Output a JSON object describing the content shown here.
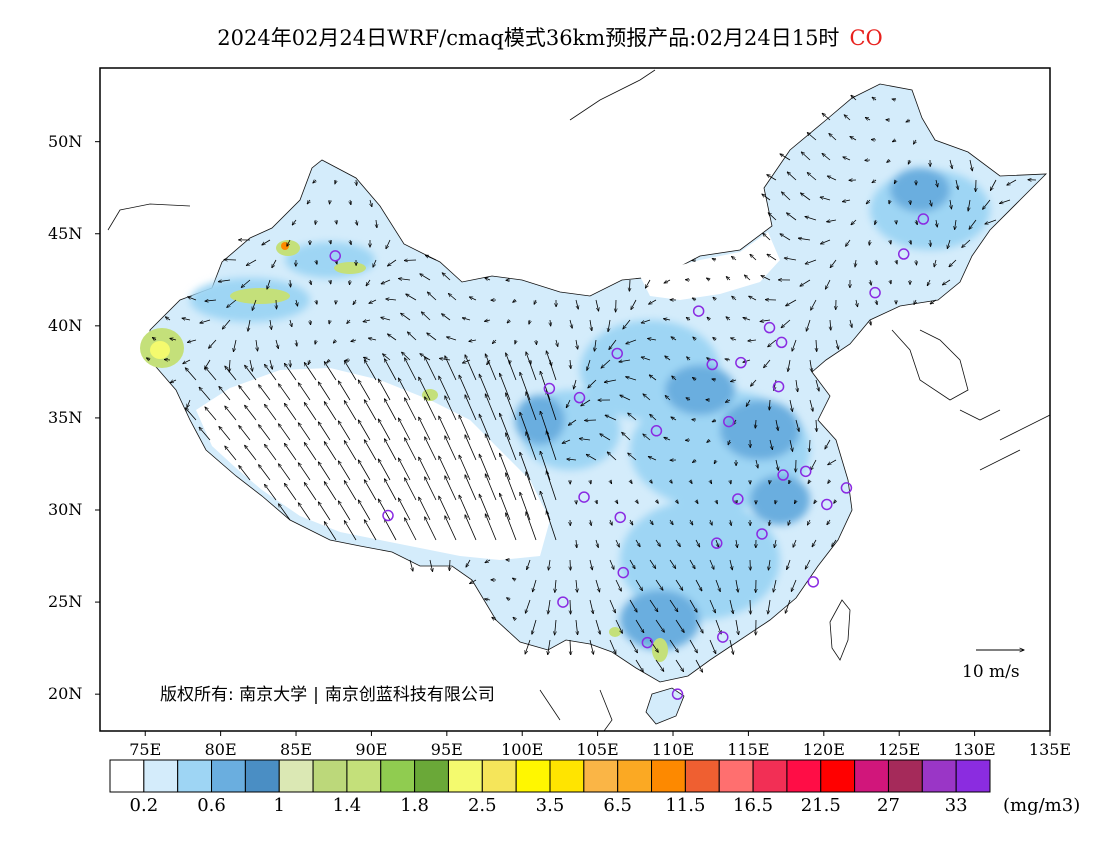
{
  "title": {
    "text": "2024年02月24日WRF/cmaq模式36km预报产品:02月24日15时",
    "pollutant": "CO"
  },
  "map": {
    "lon_ticks": [
      "75E",
      "80E",
      "85E",
      "90E",
      "95E",
      "100E",
      "105E",
      "110E",
      "115E",
      "120E",
      "125E",
      "130E",
      "135E"
    ],
    "lat_ticks": [
      "50N",
      "45N",
      "40N",
      "35N",
      "30N",
      "25N",
      "20N"
    ],
    "lon_range": [
      72,
      135
    ],
    "lat_range": [
      18,
      54
    ],
    "copyright": [
      "版权所有: 南京大学",
      "南京创蓝科技有限公司"
    ],
    "wind_reference": "10 m/s"
  },
  "colorbar": {
    "colors": [
      "#ffffff",
      "#d4ecfb",
      "#9ed5f4",
      "#6aaedf",
      "#4a8ec4",
      "#dbe8b4",
      "#bcd87a",
      "#c4e07a",
      "#90cc50",
      "#6aa838",
      "#f4fa6e",
      "#f5e55a",
      "#fff700",
      "#ffe400",
      "#fab546",
      "#fba923",
      "#fd8900",
      "#ef5f31",
      "#ff6f6f",
      "#f22f55",
      "#ff0d46",
      "#ff0000",
      "#d1167b",
      "#a52a5a",
      "#9a36c6",
      "#8b2ce0"
    ],
    "labels": [
      "0.2",
      "0.6",
      "1",
      "1.4",
      "1.8",
      "2.5",
      "3.5",
      "6.5",
      "11.5",
      "16.5",
      "21.5",
      "27",
      "33"
    ],
    "unit": "(mg/m3)"
  },
  "stations": [
    [
      87.6,
      43.8
    ],
    [
      91.1,
      29.7
    ],
    [
      101.8,
      36.6
    ],
    [
      103.8,
      36.1
    ],
    [
      106.3,
      38.5
    ],
    [
      111.7,
      40.8
    ],
    [
      112.6,
      37.9
    ],
    [
      114.5,
      38.0
    ],
    [
      116.4,
      39.9
    ],
    [
      117.2,
      39.1
    ],
    [
      117.0,
      36.7
    ],
    [
      113.7,
      34.8
    ],
    [
      108.9,
      34.3
    ],
    [
      104.1,
      30.7
    ],
    [
      106.5,
      29.6
    ],
    [
      102.7,
      25.0
    ],
    [
      106.7,
      26.6
    ],
    [
      112.9,
      28.2
    ],
    [
      114.3,
      30.6
    ],
    [
      115.9,
      28.7
    ],
    [
      117.3,
      31.9
    ],
    [
      118.8,
      32.1
    ],
    [
      120.2,
      30.3
    ],
    [
      121.5,
      31.2
    ],
    [
      119.3,
      26.1
    ],
    [
      113.3,
      23.1
    ],
    [
      108.3,
      22.8
    ],
    [
      110.3,
      20.0
    ],
    [
      123.4,
      41.8
    ],
    [
      125.3,
      43.9
    ],
    [
      126.6,
      45.8
    ]
  ]
}
